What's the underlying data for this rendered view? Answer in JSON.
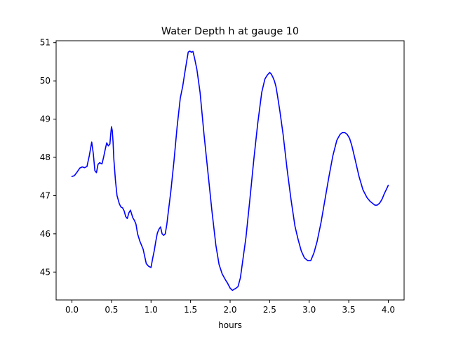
{
  "chart_data": {
    "type": "line",
    "title": "Water Depth h at gauge 10",
    "xlabel": "hours",
    "ylabel": "",
    "xlim": [
      -0.2,
      4.2
    ],
    "ylim": [
      44.27,
      51.05
    ],
    "xticks": [
      0.0,
      0.5,
      1.0,
      1.5,
      2.0,
      2.5,
      3.0,
      3.5,
      4.0
    ],
    "xtick_labels": [
      "0.0",
      "0.5",
      "1.0",
      "1.5",
      "2.0",
      "2.5",
      "3.0",
      "3.5",
      "4.0"
    ],
    "yticks": [
      45,
      46,
      47,
      48,
      49,
      50,
      51
    ],
    "ytick_labels": [
      "45",
      "46",
      "47",
      "48",
      "49",
      "50",
      "51"
    ],
    "grid": false,
    "legend": "none",
    "series": [
      {
        "color": "#0000ff",
        "x": [
          0.0,
          0.03,
          0.06,
          0.1,
          0.13,
          0.16,
          0.19,
          0.22,
          0.25,
          0.27,
          0.29,
          0.31,
          0.33,
          0.35,
          0.38,
          0.4,
          0.42,
          0.44,
          0.46,
          0.48,
          0.49,
          0.5,
          0.51,
          0.52,
          0.53,
          0.55,
          0.57,
          0.6,
          0.62,
          0.64,
          0.66,
          0.68,
          0.7,
          0.72,
          0.74,
          0.75,
          0.77,
          0.79,
          0.81,
          0.83,
          0.86,
          0.9,
          0.94,
          0.97,
          1.0,
          1.02,
          1.04,
          1.06,
          1.08,
          1.1,
          1.12,
          1.14,
          1.16,
          1.18,
          1.2,
          1.22,
          1.25,
          1.29,
          1.33,
          1.37,
          1.4,
          1.43,
          1.45,
          1.47,
          1.49,
          1.51,
          1.53,
          1.55,
          1.58,
          1.62,
          1.67,
          1.72,
          1.77,
          1.82,
          1.86,
          1.9,
          1.94,
          1.97,
          2.0,
          2.03,
          2.05,
          2.07,
          2.1,
          2.13,
          2.16,
          2.2,
          2.25,
          2.3,
          2.35,
          2.4,
          2.44,
          2.47,
          2.5,
          2.52,
          2.54,
          2.56,
          2.58,
          2.6,
          2.63,
          2.67,
          2.72,
          2.77,
          2.82,
          2.86,
          2.9,
          2.94,
          2.98,
          3.02,
          3.06,
          3.1,
          3.15,
          3.2,
          3.25,
          3.3,
          3.35,
          3.39,
          3.42,
          3.45,
          3.48,
          3.51,
          3.54,
          3.58,
          3.63,
          3.68,
          3.73,
          3.77,
          3.8,
          3.83,
          3.86,
          3.89,
          3.92,
          3.95,
          3.98,
          4.0
        ],
        "y": [
          47.5,
          47.52,
          47.6,
          47.72,
          47.75,
          47.73,
          47.76,
          48.05,
          48.4,
          48.1,
          47.65,
          47.6,
          47.82,
          47.86,
          47.83,
          48.0,
          48.2,
          48.38,
          48.3,
          48.35,
          48.6,
          48.8,
          48.7,
          48.4,
          47.95,
          47.4,
          47.0,
          46.78,
          46.7,
          46.68,
          46.6,
          46.45,
          46.4,
          46.55,
          46.62,
          46.55,
          46.42,
          46.35,
          46.25,
          46.0,
          45.8,
          45.6,
          45.22,
          45.15,
          45.12,
          45.35,
          45.55,
          45.8,
          46.02,
          46.12,
          46.18,
          46.0,
          45.96,
          46.0,
          46.25,
          46.6,
          47.1,
          47.9,
          48.8,
          49.55,
          49.85,
          50.25,
          50.5,
          50.75,
          50.78,
          50.75,
          50.77,
          50.6,
          50.3,
          49.7,
          48.6,
          47.6,
          46.6,
          45.7,
          45.2,
          44.95,
          44.8,
          44.7,
          44.58,
          44.52,
          44.55,
          44.57,
          44.62,
          44.85,
          45.3,
          45.9,
          46.9,
          47.95,
          48.9,
          49.7,
          50.05,
          50.15,
          50.22,
          50.18,
          50.1,
          50.0,
          49.85,
          49.6,
          49.2,
          48.6,
          47.7,
          46.9,
          46.2,
          45.85,
          45.55,
          45.37,
          45.3,
          45.3,
          45.5,
          45.8,
          46.3,
          46.9,
          47.5,
          48.05,
          48.45,
          48.6,
          48.65,
          48.65,
          48.6,
          48.5,
          48.3,
          47.95,
          47.5,
          47.15,
          46.95,
          46.85,
          46.8,
          46.75,
          46.75,
          46.8,
          46.9,
          47.05,
          47.18,
          47.27
        ]
      }
    ]
  }
}
